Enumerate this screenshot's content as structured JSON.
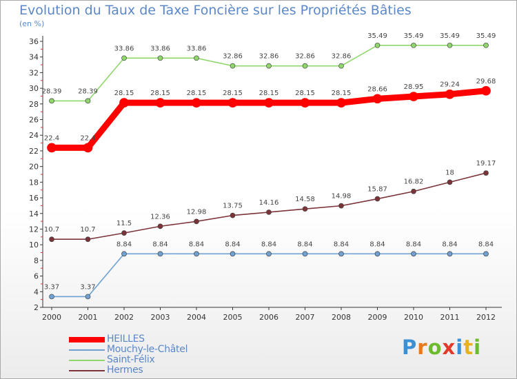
{
  "header": {
    "title": "Evolution du Taux de Taxe Foncière sur les Propriétés Bâties",
    "subtitle": "(en %)"
  },
  "logo": {
    "letters": [
      "P",
      "r",
      "o",
      "x",
      "i",
      "t",
      "i"
    ],
    "colors": [
      "#3b8fd4",
      "#e87a1d",
      "#6cbb2c",
      "#e23a2a",
      "#3b8fd4",
      "#e8b21d",
      "#6cbb2c"
    ]
  },
  "chart_data": {
    "type": "line",
    "title": "Evolution du Taux de Taxe Foncière sur les Propriétés Bâties",
    "ylabel": "(en %)",
    "x": [
      "2000",
      "2001",
      "2002",
      "2003",
      "2004",
      "2005",
      "2006",
      "2007",
      "2008",
      "2009",
      "2010",
      "2011",
      "2012"
    ],
    "ylim": [
      2,
      36
    ],
    "yticks": [
      2,
      4,
      6,
      8,
      10,
      12,
      14,
      16,
      18,
      20,
      22,
      24,
      26,
      28,
      30,
      32,
      34,
      36
    ],
    "grid": false,
    "legend": "bottom-left",
    "series": [
      {
        "name": "HEILLES",
        "color": "#ff0000",
        "values": [
          22.4,
          22.4,
          28.15,
          28.15,
          28.15,
          28.15,
          28.15,
          28.15,
          28.15,
          28.66,
          28.95,
          29.24,
          29.68
        ],
        "labels": [
          "22.4",
          "22.4",
          "28.15",
          "28.15",
          "28.15",
          "28.15",
          "28.15",
          "28.15",
          "28.15",
          "28.66",
          "28.95",
          "29.24",
          "29.68"
        ]
      },
      {
        "name": "Mouchy-le-Châtel",
        "color": "#6fa1d2",
        "values": [
          3.37,
          3.37,
          8.84,
          8.84,
          8.84,
          8.84,
          8.84,
          8.84,
          8.84,
          8.84,
          8.84,
          8.84,
          8.84
        ],
        "labels": [
          "3.37",
          "3.37",
          "8.84",
          "8.84",
          "8.84",
          "8.84",
          "8.84",
          "8.84",
          "8.84",
          "8.84",
          "8.84",
          "8.84",
          "8.84"
        ]
      },
      {
        "name": "Saint-Félix",
        "color": "#8fd66b",
        "values": [
          28.39,
          28.39,
          33.86,
          33.86,
          33.86,
          32.86,
          32.86,
          32.86,
          32.86,
          35.49,
          35.49,
          35.49,
          35.49
        ],
        "labels": [
          "28.39",
          "28.39",
          "33.86",
          "33.86",
          "33.86",
          "32.86",
          "32.86",
          "32.86",
          "32.86",
          "35.49",
          "35.49",
          "35.49",
          "35.49"
        ]
      },
      {
        "name": "Hermes",
        "color": "#7b3238",
        "values": [
          10.7,
          10.7,
          11.5,
          12.36,
          12.98,
          13.75,
          14.16,
          14.58,
          14.98,
          15.87,
          16.82,
          18,
          19.17
        ],
        "labels": [
          "10.7",
          "10.7",
          "11.5",
          "12.36",
          "12.98",
          "13.75",
          "14.16",
          "14.58",
          "14.98",
          "15.87",
          "16.82",
          "18",
          "19.17"
        ]
      }
    ]
  }
}
